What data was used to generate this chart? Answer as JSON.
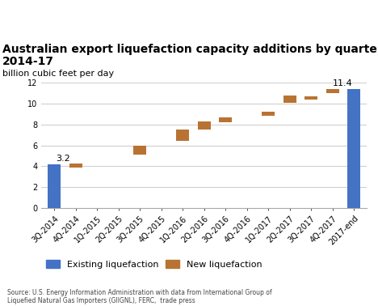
{
  "title_line1": "Australian export liquefaction capacity additions by quarter,",
  "title_line2": "2014-17",
  "ylabel": "billion cubic feet per day",
  "ylim": [
    0,
    12
  ],
  "yticks": [
    0,
    2,
    4,
    6,
    8,
    10,
    12
  ],
  "categories": [
    "3Q-2014",
    "4Q-2014",
    "1Q-2015",
    "2Q-2015",
    "3Q-2015",
    "4Q-2015",
    "1Q-2016",
    "2Q-2016",
    "3Q-2016",
    "4Q-2016",
    "1Q-2017",
    "2Q-2017",
    "3Q-2017",
    "4Q-2017",
    "2017-end"
  ],
  "bar_bottoms": [
    0,
    3.9,
    null,
    null,
    5.1,
    null,
    6.4,
    7.5,
    8.2,
    null,
    8.8,
    10.1,
    10.4,
    11.0,
    0
  ],
  "bar_heights": [
    4.2,
    0.35,
    null,
    null,
    0.9,
    null,
    1.1,
    0.8,
    0.45,
    null,
    0.4,
    0.7,
    0.25,
    0.35,
    11.4
  ],
  "bar_colors": [
    "#4472c4",
    "#b87333",
    null,
    null,
    "#b87333",
    null,
    "#b87333",
    "#b87333",
    "#b87333",
    null,
    "#b87333",
    "#b87333",
    "#b87333",
    "#b87333",
    "#4472c4"
  ],
  "legend": [
    {
      "label": "Existing liquefaction",
      "color": "#4472c4"
    },
    {
      "label": "New liquefaction",
      "color": "#b87333"
    }
  ],
  "source_text": "Source: U.S. Energy Information Administration with data from International Group of\nLiquefied Natural Gas Importers (GIIGNL), FERC,  trade press",
  "background_color": "#ffffff",
  "grid_color": "#d0d0d0",
  "title_fontsize": 10,
  "ylabel_fontsize": 8,
  "tick_fontsize": 7,
  "ann_fontsize": 8,
  "legend_fontsize": 8,
  "source_fontsize": 5.5
}
